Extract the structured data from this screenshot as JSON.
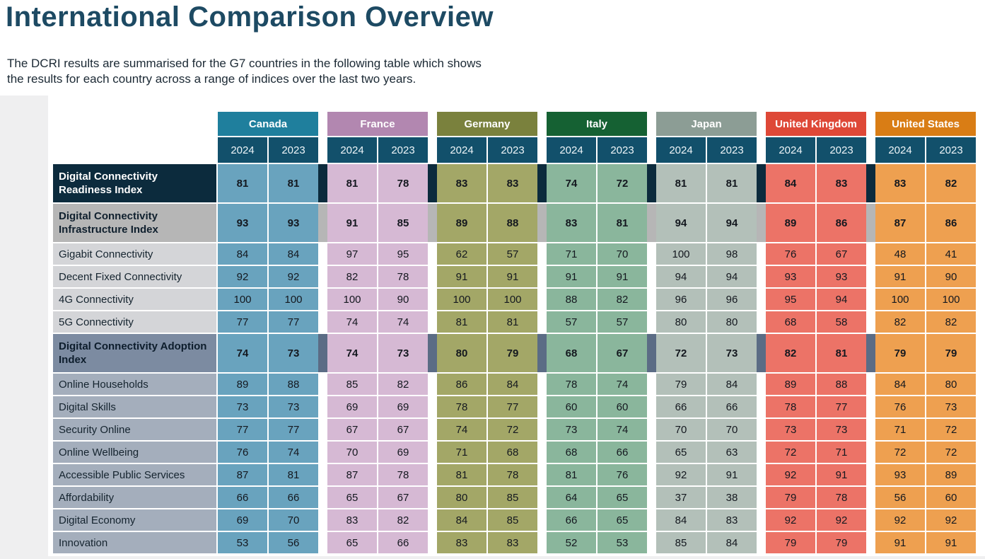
{
  "page": {
    "title": "International Comparison Overview",
    "subtitle_line1": "The DCRI results are summarised for the G7 countries in the following table which shows",
    "subtitle_line2": "the results for each country across a range of indices over the last two years."
  },
  "colors": {
    "title_text": "#1d4a63",
    "page_band": "#efeff0",
    "year_header_bg": "#12506b",
    "value_text": "#14181f"
  },
  "table": {
    "years": [
      "2024",
      "2023"
    ],
    "countries": [
      {
        "name": "Canada",
        "header_color": "#1f7f9d",
        "cell_color": "#69a3be"
      },
      {
        "name": "France",
        "header_color": "#b287b0",
        "cell_color": "#d6b9d4"
      },
      {
        "name": "Germany",
        "header_color": "#7a813d",
        "cell_color": "#a3a767"
      },
      {
        "name": "Italy",
        "header_color": "#156133",
        "cell_color": "#8ab69c"
      },
      {
        "name": "Japan",
        "header_color": "#8c9d95",
        "cell_color": "#b3c0b9"
      },
      {
        "name": "United Kingdom",
        "header_color": "#de4837",
        "cell_color": "#ec7367"
      },
      {
        "name": "United States",
        "header_color": "#d97d15",
        "cell_color": "#eea050"
      }
    ],
    "rows": [
      {
        "label": "Digital Connectivity Readiness Index",
        "type": "index",
        "label_bg": "#0c2b3d",
        "label_color": "#ffffff",
        "connector": "#0c2b3d",
        "values": [
          [
            81,
            81
          ],
          [
            81,
            78
          ],
          [
            83,
            83
          ],
          [
            74,
            72
          ],
          [
            81,
            81
          ],
          [
            84,
            83
          ],
          [
            83,
            82
          ]
        ]
      },
      {
        "label": "Digital Connectivity Infrastructure Index",
        "type": "index",
        "label_bg": "#b6b6b6",
        "label_color": "#10202e",
        "connector": "#b6b6b6",
        "values": [
          [
            93,
            93
          ],
          [
            91,
            85
          ],
          [
            89,
            88
          ],
          [
            83,
            81
          ],
          [
            94,
            94
          ],
          [
            89,
            86
          ],
          [
            87,
            86
          ]
        ]
      },
      {
        "label": "Gigabit Connectivity",
        "type": "sub",
        "label_bg": "#d4d5d8",
        "label_color": "#15242f",
        "values": [
          [
            84,
            84
          ],
          [
            97,
            95
          ],
          [
            62,
            57
          ],
          [
            71,
            70
          ],
          [
            100,
            98
          ],
          [
            76,
            67
          ],
          [
            48,
            41
          ]
        ]
      },
      {
        "label": "Decent Fixed Connectivity",
        "type": "sub",
        "label_bg": "#d4d5d8",
        "label_color": "#15242f",
        "values": [
          [
            92,
            92
          ],
          [
            82,
            78
          ],
          [
            91,
            91
          ],
          [
            91,
            91
          ],
          [
            94,
            94
          ],
          [
            93,
            93
          ],
          [
            91,
            90
          ]
        ]
      },
      {
        "label": "4G Connectivity",
        "type": "sub",
        "label_bg": "#d4d5d8",
        "label_color": "#15242f",
        "values": [
          [
            100,
            100
          ],
          [
            100,
            90
          ],
          [
            100,
            100
          ],
          [
            88,
            82
          ],
          [
            96,
            96
          ],
          [
            95,
            94
          ],
          [
            100,
            100
          ]
        ]
      },
      {
        "label": "5G Connectivity",
        "type": "sub",
        "label_bg": "#d4d5d8",
        "label_color": "#15242f",
        "values": [
          [
            77,
            77
          ],
          [
            74,
            74
          ],
          [
            81,
            81
          ],
          [
            57,
            57
          ],
          [
            80,
            80
          ],
          [
            68,
            58
          ],
          [
            82,
            82
          ]
        ]
      },
      {
        "label": "Digital Connectivity Adoption Index",
        "type": "index",
        "label_bg": "#7c8ba1",
        "label_color": "#0d1d2c",
        "connector": "#5b6c85",
        "values": [
          [
            74,
            73
          ],
          [
            74,
            73
          ],
          [
            80,
            79
          ],
          [
            68,
            67
          ],
          [
            72,
            73
          ],
          [
            82,
            81
          ],
          [
            79,
            79
          ]
        ]
      },
      {
        "label": "Online Households",
        "type": "sub",
        "label_bg": "#a4aebc",
        "label_color": "#15242f",
        "values": [
          [
            89,
            88
          ],
          [
            85,
            82
          ],
          [
            86,
            84
          ],
          [
            78,
            74
          ],
          [
            79,
            84
          ],
          [
            89,
            88
          ],
          [
            84,
            80
          ]
        ]
      },
      {
        "label": "Digital Skills",
        "type": "sub",
        "label_bg": "#a4aebc",
        "label_color": "#15242f",
        "values": [
          [
            73,
            73
          ],
          [
            69,
            69
          ],
          [
            78,
            77
          ],
          [
            60,
            60
          ],
          [
            66,
            66
          ],
          [
            78,
            77
          ],
          [
            76,
            73
          ]
        ]
      },
      {
        "label": "Security Online",
        "type": "sub",
        "label_bg": "#a4aebc",
        "label_color": "#15242f",
        "values": [
          [
            77,
            77
          ],
          [
            67,
            67
          ],
          [
            74,
            72
          ],
          [
            73,
            74
          ],
          [
            70,
            70
          ],
          [
            73,
            73
          ],
          [
            71,
            72
          ]
        ]
      },
      {
        "label": "Online Wellbeing",
        "type": "sub",
        "label_bg": "#a4aebc",
        "label_color": "#15242f",
        "values": [
          [
            76,
            74
          ],
          [
            70,
            69
          ],
          [
            71,
            68
          ],
          [
            68,
            66
          ],
          [
            65,
            63
          ],
          [
            72,
            71
          ],
          [
            72,
            72
          ]
        ]
      },
      {
        "label": "Accessible Public Services",
        "type": "sub",
        "label_bg": "#a4aebc",
        "label_color": "#15242f",
        "values": [
          [
            87,
            81
          ],
          [
            87,
            78
          ],
          [
            81,
            78
          ],
          [
            81,
            76
          ],
          [
            92,
            91
          ],
          [
            92,
            91
          ],
          [
            93,
            89
          ]
        ]
      },
      {
        "label": "Affordability",
        "type": "sub",
        "label_bg": "#a4aebc",
        "label_color": "#15242f",
        "values": [
          [
            66,
            66
          ],
          [
            65,
            67
          ],
          [
            80,
            85
          ],
          [
            64,
            65
          ],
          [
            37,
            38
          ],
          [
            79,
            78
          ],
          [
            56,
            60
          ]
        ]
      },
      {
        "label": "Digital Economy",
        "type": "sub",
        "label_bg": "#a4aebc",
        "label_color": "#15242f",
        "values": [
          [
            69,
            70
          ],
          [
            83,
            82
          ],
          [
            84,
            85
          ],
          [
            66,
            65
          ],
          [
            84,
            83
          ],
          [
            92,
            92
          ],
          [
            92,
            92
          ]
        ]
      },
      {
        "label": "Innovation",
        "type": "sub",
        "label_bg": "#a4aebc",
        "label_color": "#15242f",
        "values": [
          [
            53,
            56
          ],
          [
            65,
            66
          ],
          [
            83,
            83
          ],
          [
            52,
            53
          ],
          [
            85,
            84
          ],
          [
            79,
            79
          ],
          [
            91,
            91
          ]
        ]
      }
    ]
  }
}
